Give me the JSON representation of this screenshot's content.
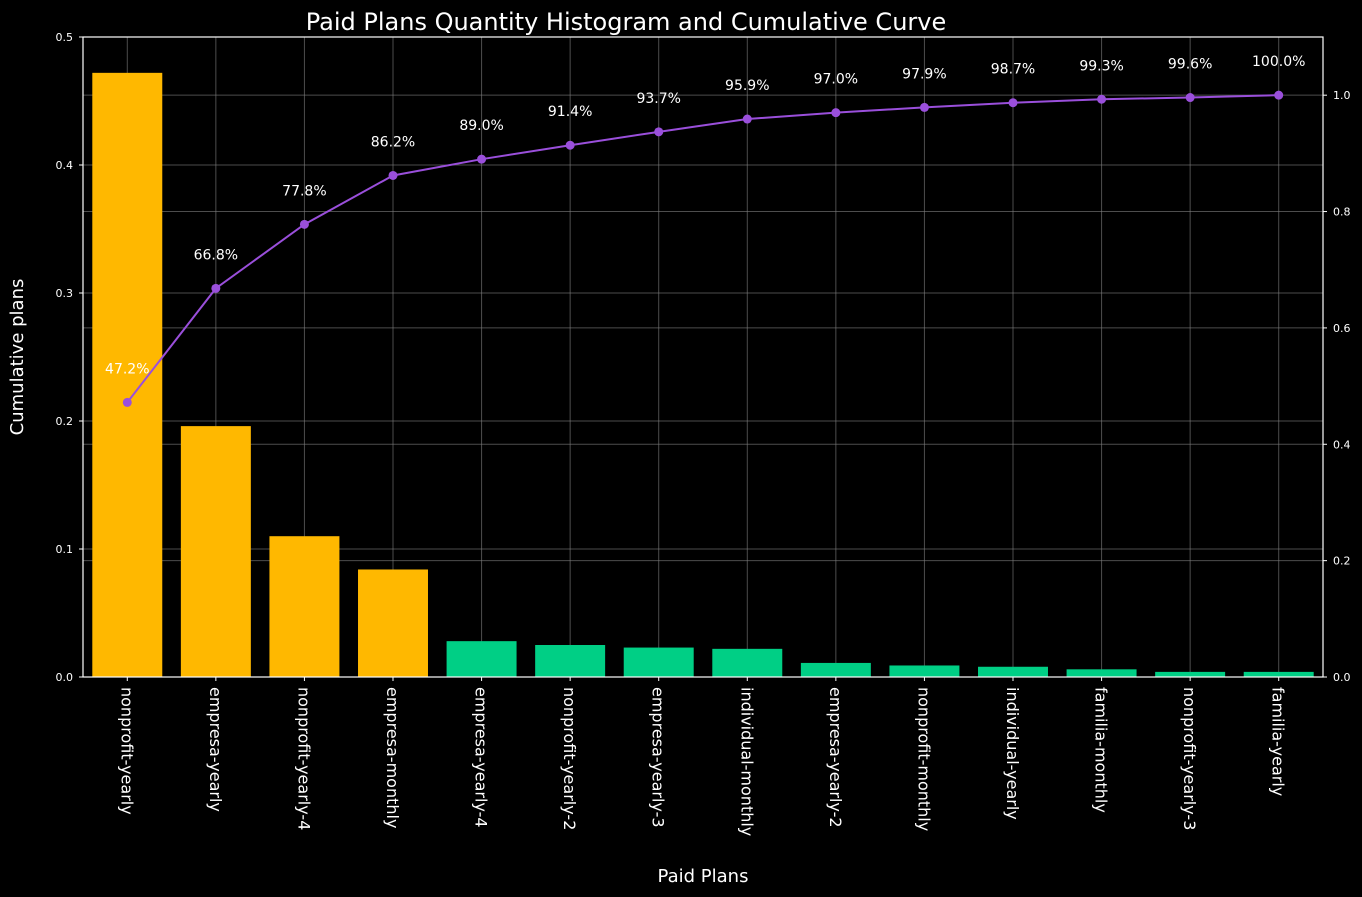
{
  "chart_data": {
    "type": "bar",
    "title": "Paid Plans Quantity Histogram and Cumulative Curve",
    "xlabel": "Paid Plans",
    "ylabel": "Cumulative plans",
    "categories": [
      "nonprofit-yearly",
      "empresa-yearly",
      "nonprofit-yearly-4",
      "empresa-monthly",
      "empresa-yearly-4",
      "nonprofit-yearly-2",
      "empresa-yearly-3",
      "individual-monthly",
      "empresa-yearly-2",
      "nonprofit-monthly",
      "individual-yearly",
      "familia-monthly",
      "nonprofit-yearly-3",
      "familia-yearly"
    ],
    "values": [
      0.472,
      0.196,
      0.11,
      0.084,
      0.028,
      0.025,
      0.023,
      0.022,
      0.011,
      0.009,
      0.008,
      0.006,
      0.004,
      0.004
    ],
    "bar_colors": [
      "#FFB800",
      "#FFB800",
      "#FFB800",
      "#FFB800",
      "#00CF85",
      "#00CF85",
      "#00CF85",
      "#00CF85",
      "#00CF85",
      "#00CF85",
      "#00CF85",
      "#00CF85",
      "#00CF85",
      "#00CF85"
    ],
    "ylim": [
      0,
      0.5
    ],
    "y_ticks": [
      "0.0",
      "0.1",
      "0.2",
      "0.3",
      "0.4",
      "0.5"
    ],
    "secondary_axis": {
      "ylim": [
        0,
        1.1
      ],
      "ticks": [
        "0.0",
        "0.2",
        "0.4",
        "0.6",
        "0.8",
        "1.0"
      ],
      "tick_values": [
        0,
        0.2,
        0.4,
        0.6,
        0.8,
        1.0
      ]
    },
    "series": [
      {
        "type": "line",
        "axis": "secondary",
        "color": "#9A4FDB",
        "values": [
          0.472,
          0.668,
          0.778,
          0.862,
          0.89,
          0.914,
          0.937,
          0.959,
          0.97,
          0.979,
          0.987,
          0.993,
          0.996,
          1.0
        ],
        "labels": [
          "47.2%",
          "66.8%",
          "77.8%",
          "86.2%",
          "89.0%",
          "91.4%",
          "93.7%",
          "95.9%",
          "97.0%",
          "97.9%",
          "98.7%",
          "99.3%",
          "99.6%",
          "100.0%"
        ]
      }
    ],
    "grid": true,
    "colors": {
      "background": "#000000",
      "text": "#ffffff",
      "grid": "#808080",
      "pareto_bar": "#FFB800",
      "other_bar": "#00CF85",
      "line": "#9A4FDB"
    }
  }
}
